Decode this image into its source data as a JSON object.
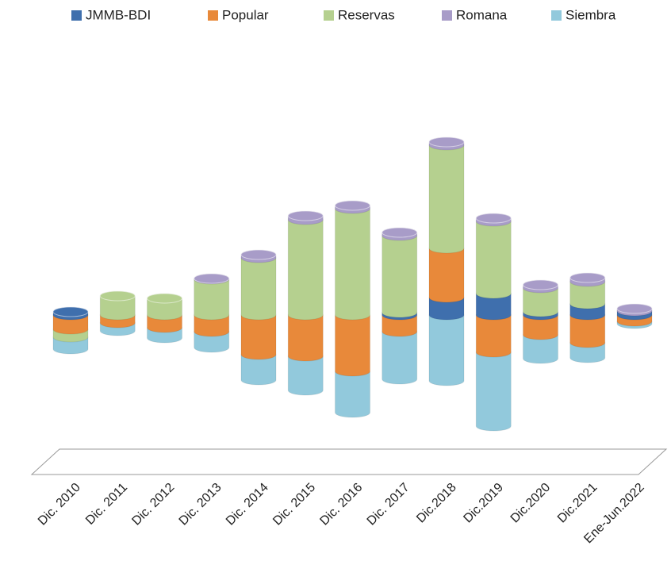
{
  "chart_data": {
    "type": "bar3d",
    "categories": [
      "Dic. 2010",
      "Dic. 2011",
      "Dic. 2012",
      "Dic. 2013",
      "Dic. 2014",
      "Dic. 2015",
      "Dic. 2016",
      "Dic. 2017",
      "Dic.2018",
      "Dic.2019",
      "Dic.2020",
      "Dic.2021",
      "Ene-Jun.2022"
    ],
    "series": [
      {
        "name": "JMMB-BDI",
        "color": "#3f6fad",
        "values": [
          0.4,
          0,
          0,
          0,
          0,
          0,
          0,
          0.3,
          2.2,
          2.7,
          0.4,
          1.4,
          0.5
        ]
      },
      {
        "name": "Popular",
        "color": "#e8893a",
        "values": [
          -1.8,
          -1.0,
          -1.6,
          -2.1,
          -5.0,
          -5.2,
          -7.1,
          -2.1,
          6.2,
          -4.7,
          -2.5,
          -3.5,
          -0.8
        ]
      },
      {
        "name": "Reservas",
        "color": "#b5d08f",
        "values": [
          -1.0,
          2.4,
          2.1,
          4.5,
          7.2,
          12.0,
          13.4,
          9.7,
          13.0,
          9.1,
          3.0,
          2.8,
          0
        ]
      },
      {
        "name": "Romana",
        "color": "#a89cc8",
        "values": [
          0,
          0,
          0,
          0.1,
          0.4,
          0.5,
          0.4,
          0.4,
          0.4,
          0.4,
          0.4,
          0.5,
          0.3
        ]
      },
      {
        "name": "Siembra",
        "color": "#92c9dc",
        "values": [
          -1.5,
          -1.0,
          -1.3,
          -2.0,
          -3.2,
          -4.3,
          -5.2,
          -6.0,
          -8.3,
          -9.3,
          -3.0,
          -1.9,
          -0.3
        ]
      }
    ],
    "legend": "top"
  }
}
